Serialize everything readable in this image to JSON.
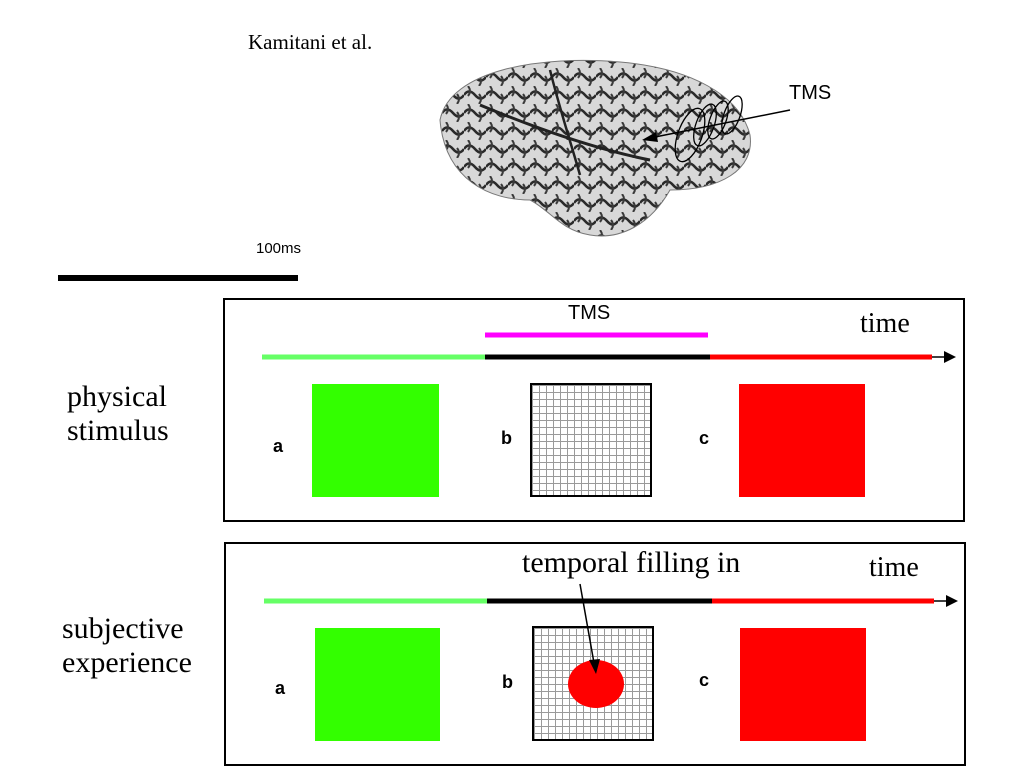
{
  "header": {
    "author": "Kamitani et al.",
    "tms_label": "TMS",
    "scale_label": "100ms"
  },
  "colors": {
    "green": "#33ff00",
    "timeline_green": "#66ff66",
    "red": "#ff0000",
    "magenta": "#ff00ff",
    "black": "#000000"
  },
  "panels": [
    {
      "row_label": "physical stimulus",
      "time_label": "time",
      "tms_label": "TMS",
      "letters": [
        "a",
        "b",
        "c"
      ]
    },
    {
      "row_label": "subjective experience",
      "time_label": "time",
      "annotation": "temporal filling in",
      "letters": [
        "a",
        "b",
        "c"
      ]
    }
  ]
}
